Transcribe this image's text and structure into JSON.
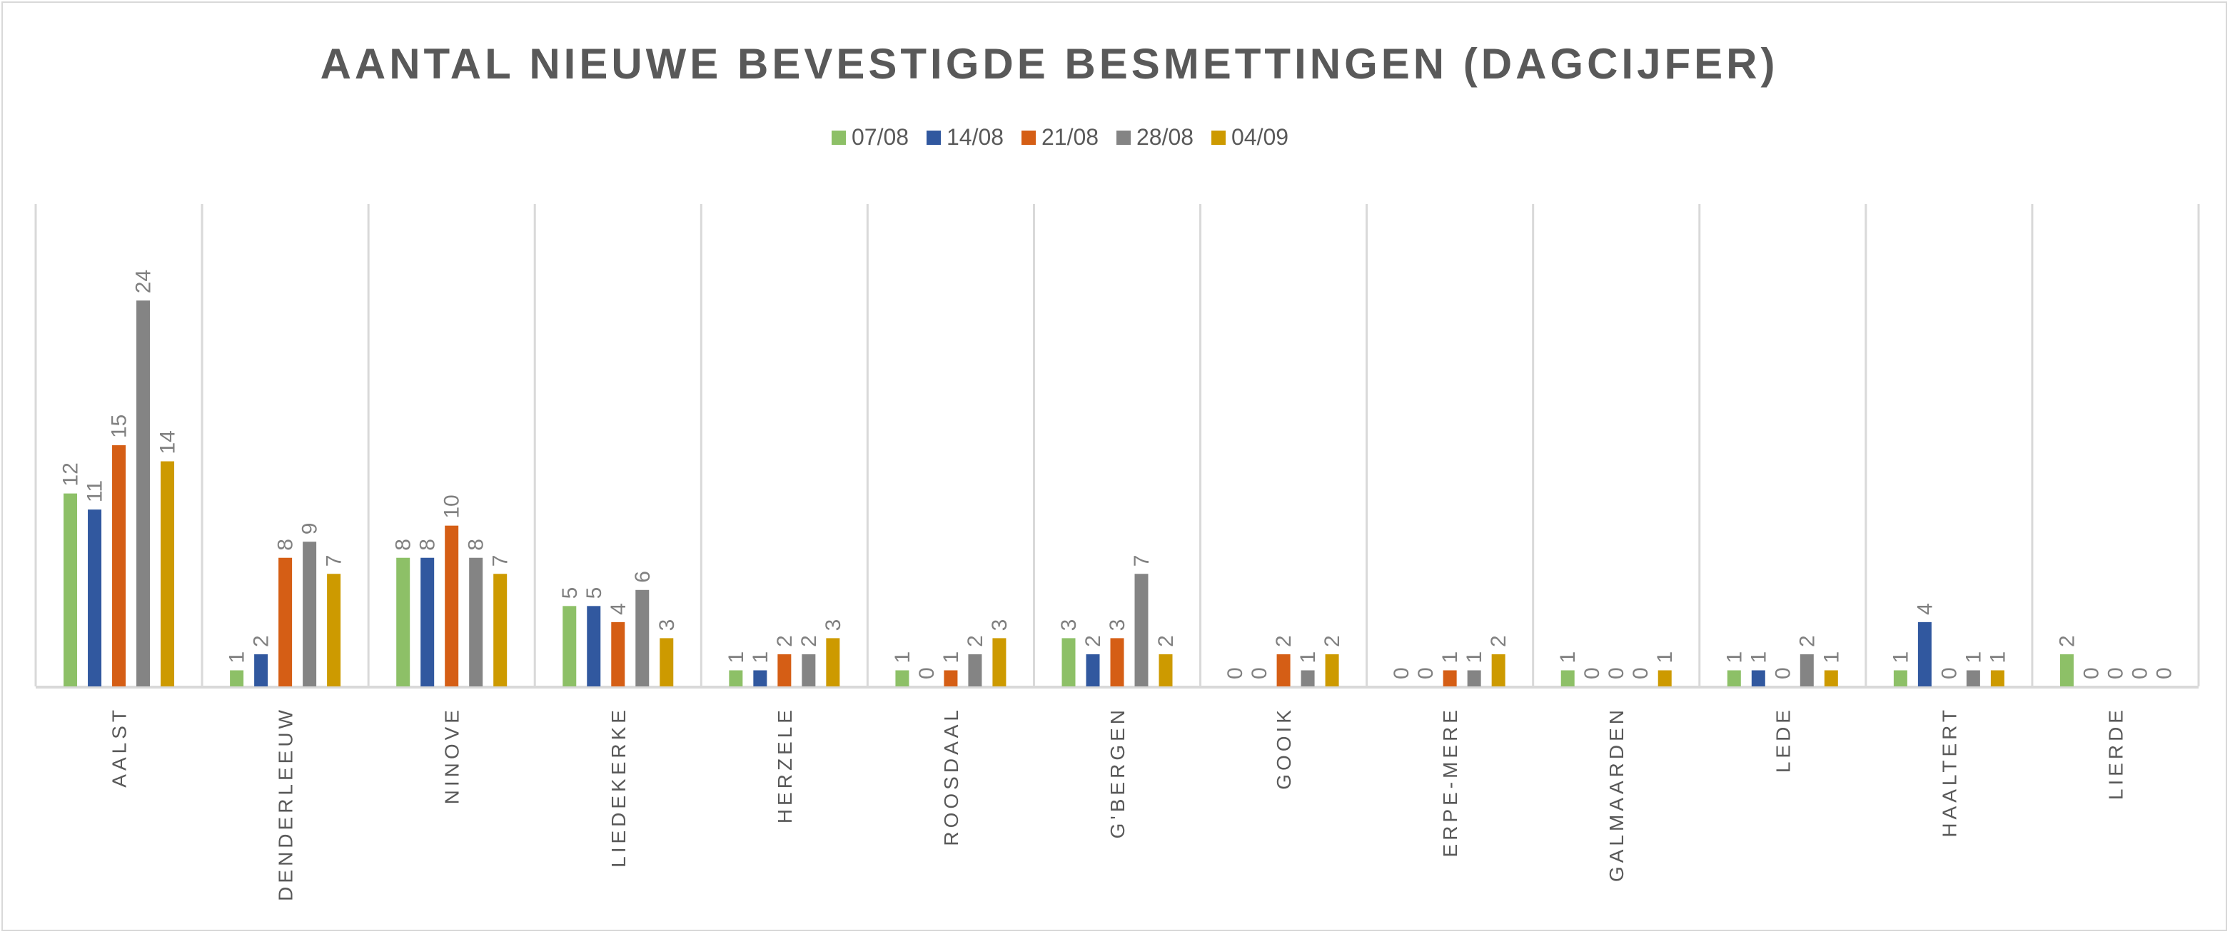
{
  "chart_data": {
    "type": "bar",
    "title": "AANTAL NIEUWE BEVESTIGDE BESMETTINGEN (DAGCIJFER)",
    "xlabel": "",
    "ylabel": "",
    "ylim": [
      0,
      30
    ],
    "grid": "vertical category separators",
    "legend_position": "top",
    "categories": [
      "AALST",
      "DENDERLEEUW",
      "NINOVE",
      "LIEDEKERKE",
      "HERZELE",
      "ROOSDAAL",
      "G'BERGEN",
      "GOOIK",
      "ERPE-MERE",
      "GALMAARDEN",
      "LEDE",
      "HAALTERT",
      "LIERDE"
    ],
    "series": [
      {
        "name": "07/08",
        "color": "#8dc067",
        "values": [
          12,
          1,
          8,
          5,
          1,
          1,
          3,
          0,
          0,
          1,
          1,
          1,
          2
        ]
      },
      {
        "name": "14/08",
        "color": "#31589f",
        "values": [
          11,
          2,
          8,
          5,
          1,
          0,
          2,
          0,
          0,
          0,
          1,
          4,
          0
        ]
      },
      {
        "name": "21/08",
        "color": "#d55e15",
        "values": [
          15,
          8,
          10,
          4,
          2,
          1,
          3,
          2,
          1,
          0,
          0,
          0,
          0
        ]
      },
      {
        "name": "28/08",
        "color": "#848484",
        "values": [
          24,
          9,
          8,
          6,
          2,
          2,
          7,
          1,
          1,
          0,
          2,
          1,
          0
        ]
      },
      {
        "name": "04/09",
        "color": "#cd9a00",
        "values": [
          14,
          7,
          7,
          3,
          3,
          3,
          2,
          2,
          2,
          1,
          1,
          1,
          0
        ]
      }
    ]
  }
}
